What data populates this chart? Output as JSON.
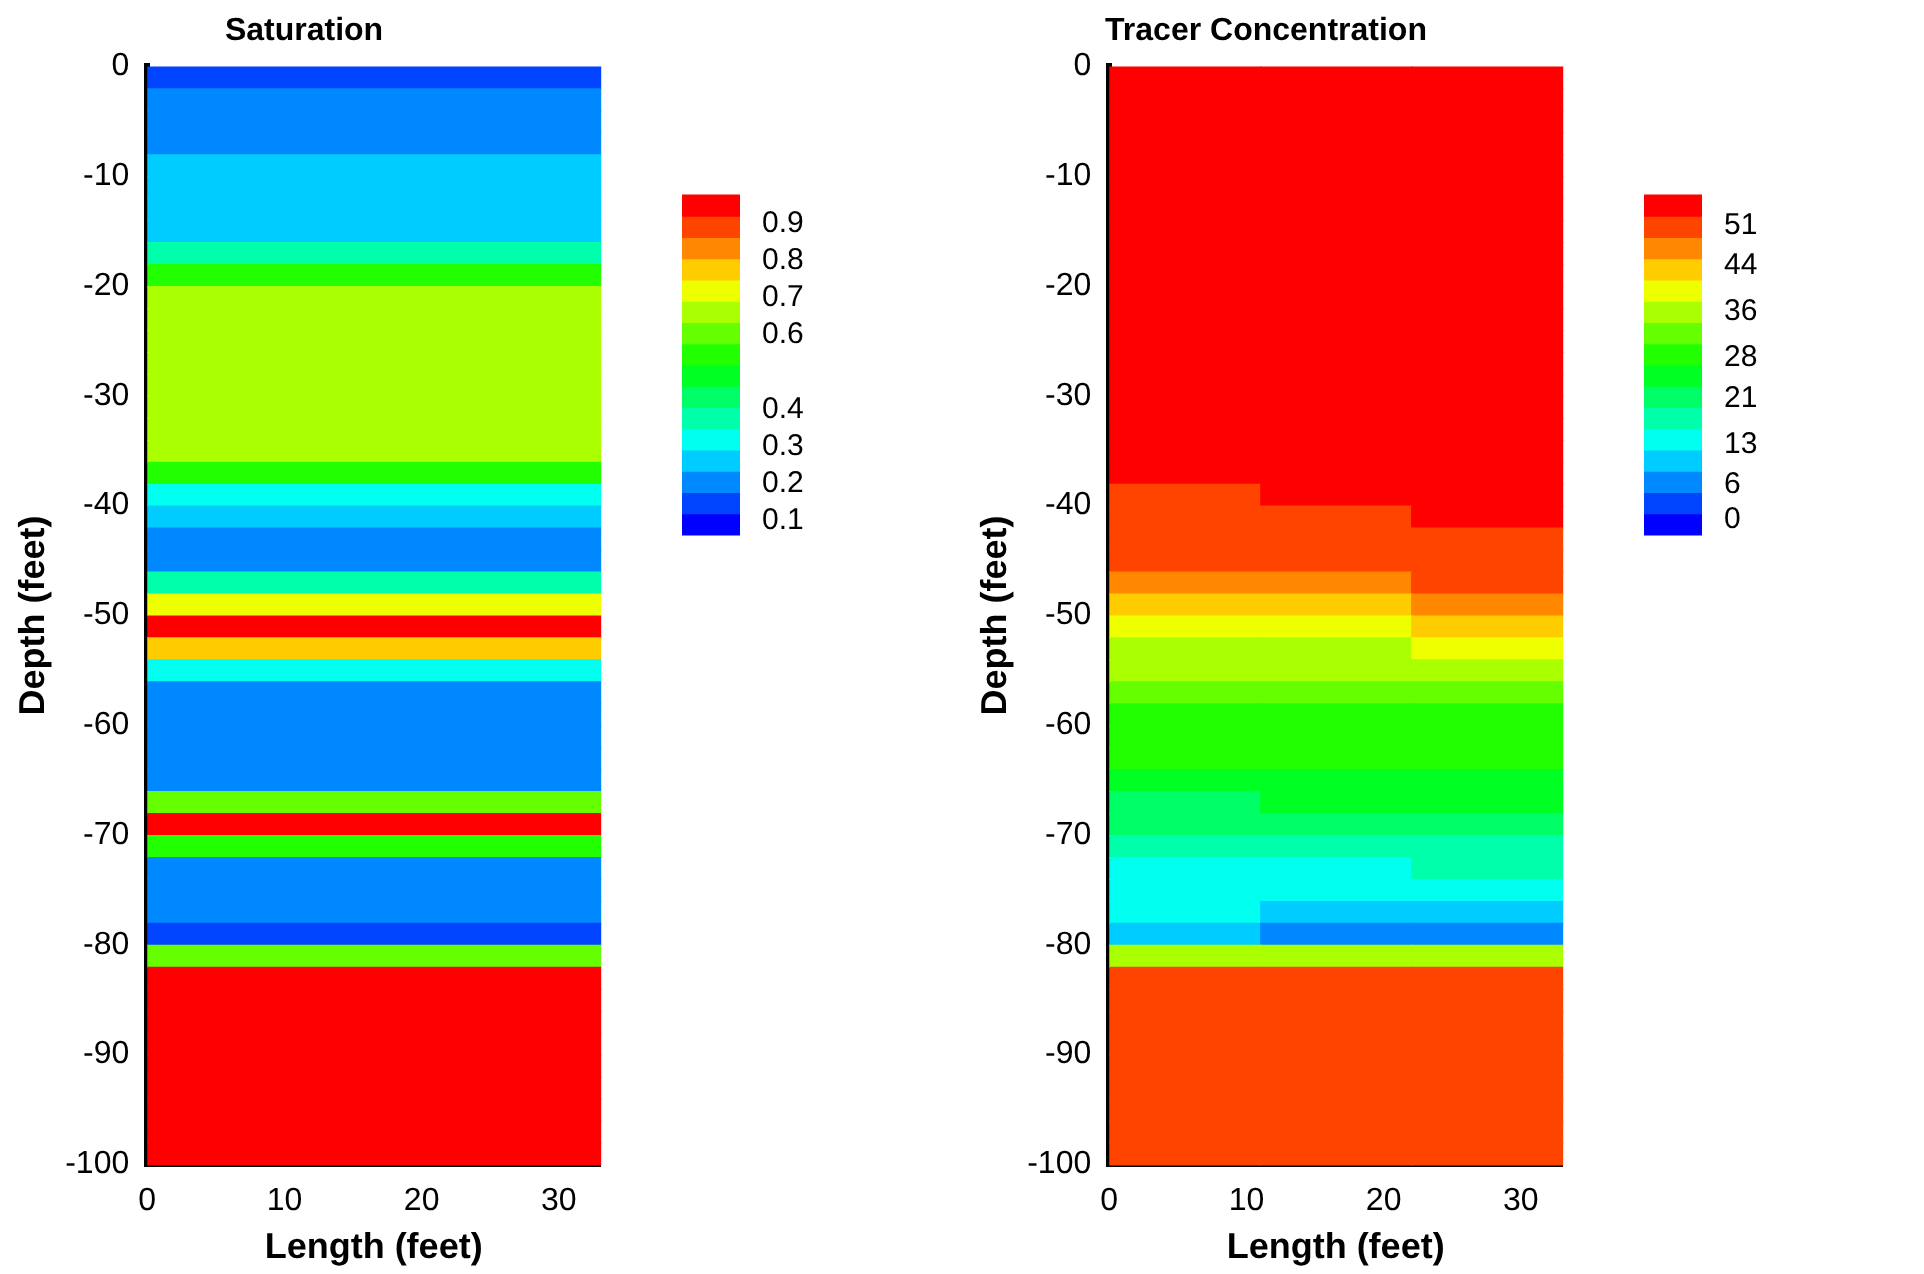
{
  "chart_data": [
    {
      "type": "heatmap",
      "title": "Saturation",
      "xlabel": "Length (feet)",
      "ylabel": "Depth (feet)",
      "cells": [
        [
          0.15
        ],
        [
          0.2
        ],
        [
          0.2
        ],
        [
          0.2
        ],
        [
          0.27
        ],
        [
          0.27
        ],
        [
          0.27
        ],
        [
          0.27
        ],
        [
          0.35
        ],
        [
          0.55
        ],
        [
          0.65
        ],
        [
          0.65
        ],
        [
          0.65
        ],
        [
          0.65
        ],
        [
          0.65
        ],
        [
          0.65
        ],
        [
          0.65
        ],
        [
          0.65
        ],
        [
          0.5
        ],
        [
          0.3
        ],
        [
          0.25
        ],
        [
          0.2
        ],
        [
          0.2
        ],
        [
          0.35
        ],
        [
          0.7
        ],
        [
          0.9
        ],
        [
          0.75
        ],
        [
          0.3
        ],
        [
          0.2
        ],
        [
          0.2
        ],
        [
          0.2
        ],
        [
          0.2
        ],
        [
          0.2
        ],
        [
          0.6
        ],
        [
          0.9
        ],
        [
          0.5
        ],
        [
          0.2
        ],
        [
          0.2
        ],
        [
          0.2
        ],
        [
          0.15
        ],
        [
          0.6
        ],
        [
          0.9
        ],
        [
          0.9
        ],
        [
          0.95
        ],
        [
          0.95
        ],
        [
          0.95
        ],
        [
          0.95
        ],
        [
          0.95
        ],
        [
          0.95
        ],
        [
          0.95
        ]
      ],
      "clim": [
        0.043,
        0.957
      ],
      "cticks": [
        0.1,
        0.2,
        0.3,
        0.4,
        0.6,
        0.7,
        0.8,
        0.9
      ],
      "xlim": [
        0,
        33
      ],
      "xticks": [
        0,
        10,
        20,
        30
      ],
      "ylim": [
        -100,
        0
      ],
      "yticks": [
        0,
        -10,
        -20,
        -30,
        -40,
        -50,
        -60,
        -70,
        -80,
        -90,
        -100
      ]
    },
    {
      "type": "heatmap",
      "title": "Tracer Concentration",
      "xlabel": "Length (feet)",
      "ylabel": "Depth (feet)",
      "cells": [
        [
          53,
          53,
          53
        ],
        [
          53,
          53,
          53
        ],
        [
          53,
          53,
          53
        ],
        [
          53,
          53,
          53
        ],
        [
          53,
          53,
          53
        ],
        [
          53,
          53,
          53
        ],
        [
          53,
          53,
          53
        ],
        [
          53,
          53,
          53
        ],
        [
          53,
          53,
          53
        ],
        [
          53,
          53,
          53
        ],
        [
          53,
          53,
          53
        ],
        [
          53,
          53,
          53
        ],
        [
          53,
          53,
          53
        ],
        [
          53,
          53,
          53
        ],
        [
          53,
          53,
          53
        ],
        [
          53,
          53,
          53
        ],
        [
          53,
          53,
          53
        ],
        [
          53,
          53,
          53
        ],
        [
          53,
          53,
          53
        ],
        [
          50,
          53,
          53
        ],
        [
          50,
          50,
          52
        ],
        [
          50,
          50,
          50
        ],
        [
          48,
          50,
          50
        ],
        [
          45,
          46,
          48
        ],
        [
          41,
          43,
          44
        ],
        [
          38,
          39,
          41
        ],
        [
          35,
          36,
          37
        ],
        [
          33,
          33,
          34
        ],
        [
          30,
          30,
          31
        ],
        [
          29,
          29,
          29
        ],
        [
          28,
          28,
          28
        ],
        [
          26,
          26,
          27
        ],
        [
          24,
          24,
          25
        ],
        [
          21,
          22,
          23
        ],
        [
          19,
          20,
          20
        ],
        [
          16,
          16,
          17
        ],
        [
          14,
          14,
          15
        ],
        [
          12,
          12,
          13
        ],
        [
          12,
          9,
          9
        ],
        [
          10,
          7,
          6
        ],
        [
          36,
          36,
          36
        ],
        [
          50,
          50,
          50
        ],
        [
          50,
          50,
          50
        ],
        [
          50,
          50,
          50
        ],
        [
          50,
          50,
          50
        ],
        [
          50,
          50,
          50
        ],
        [
          50,
          50,
          50
        ],
        [
          50,
          50,
          50
        ],
        [
          50,
          50,
          50
        ],
        [
          50,
          50,
          50
        ]
      ],
      "clim": [
        -4,
        55
      ],
      "cticks": [
        0,
        6,
        13,
        21,
        28,
        36,
        44,
        51
      ],
      "xlim": [
        0,
        33
      ],
      "xticks": [
        0,
        10,
        20,
        30
      ],
      "ylim": [
        -100,
        0
      ],
      "yticks": [
        0,
        -10,
        -20,
        -30,
        -40,
        -50,
        -60,
        -70,
        -80,
        -90,
        -100
      ]
    }
  ]
}
